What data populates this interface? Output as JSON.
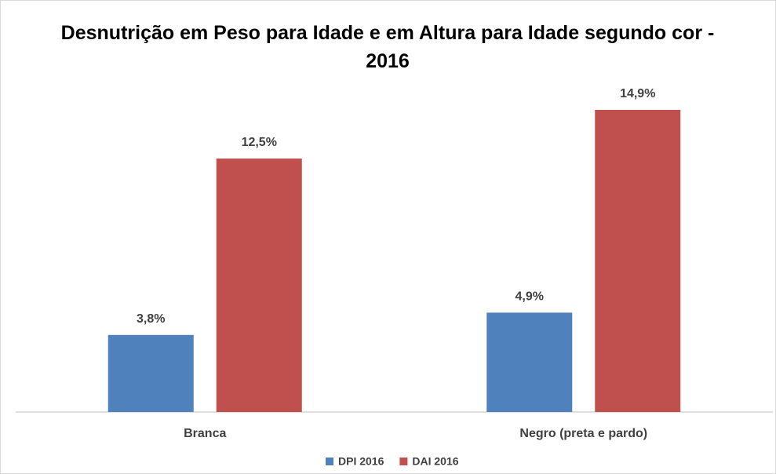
{
  "chart_data": {
    "type": "bar",
    "title": "Desnutrição em Peso para Idade e em Altura para Idade segundo cor - 2016",
    "categories": [
      "Branca",
      "Negro (preta e pardo)"
    ],
    "series": [
      {
        "name": "DPI 2016",
        "color": "#4f81bd",
        "values": [
          3.8,
          4.9
        ],
        "value_labels": [
          "3,8%",
          "4,9%"
        ]
      },
      {
        "name": "DAI 2016",
        "color": "#c0504d",
        "values": [
          12.5,
          14.9
        ],
        "value_labels": [
          "12,5%",
          "14,9%"
        ]
      }
    ],
    "legend": "bottom"
  }
}
